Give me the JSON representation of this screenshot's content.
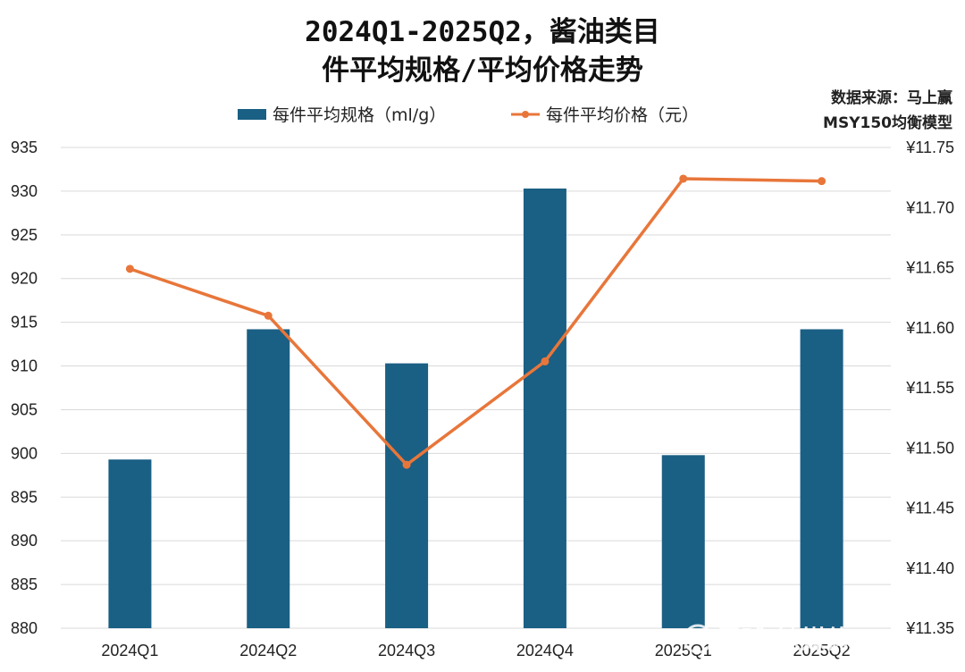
{
  "chart_data": {
    "type": "bar",
    "title_line1": "2024Q1-2025Q2，酱油类目",
    "title_line2": "件平均规格/平均价格走势",
    "source_line1": "数据来源：马上赢",
    "source_line2": "MSY150均衡模型",
    "watermark": "雪球·钛媒体APP",
    "categories": [
      "2024Q1",
      "2024Q2",
      "2024Q3",
      "2024Q4",
      "2025Q1",
      "2025Q2"
    ],
    "series": [
      {
        "name": "每件平均规格（ml/g）",
        "type": "bar",
        "axis": "left",
        "color": "#1a5f84",
        "values": [
          899.3,
          914.2,
          910.3,
          930.3,
          899.8,
          914.2
        ]
      },
      {
        "name": "每件平均价格（元）",
        "type": "line",
        "axis": "right",
        "color": "#e8763a",
        "values": [
          11.649,
          11.61,
          11.486,
          11.572,
          11.724,
          11.722
        ]
      }
    ],
    "left_axis": {
      "min": 880,
      "max": 935,
      "step": 5,
      "ticks": [
        "880",
        "885",
        "890",
        "895",
        "900",
        "905",
        "910",
        "915",
        "920",
        "925",
        "930",
        "935"
      ]
    },
    "right_axis": {
      "min": 11.35,
      "max": 11.75,
      "step": 0.05,
      "ticks": [
        "¥11.35",
        "¥11.40",
        "¥11.45",
        "¥11.50",
        "¥11.55",
        "¥11.60",
        "¥11.65",
        "¥11.70",
        "¥11.75"
      ]
    },
    "grid": true,
    "legend_position": "top"
  }
}
